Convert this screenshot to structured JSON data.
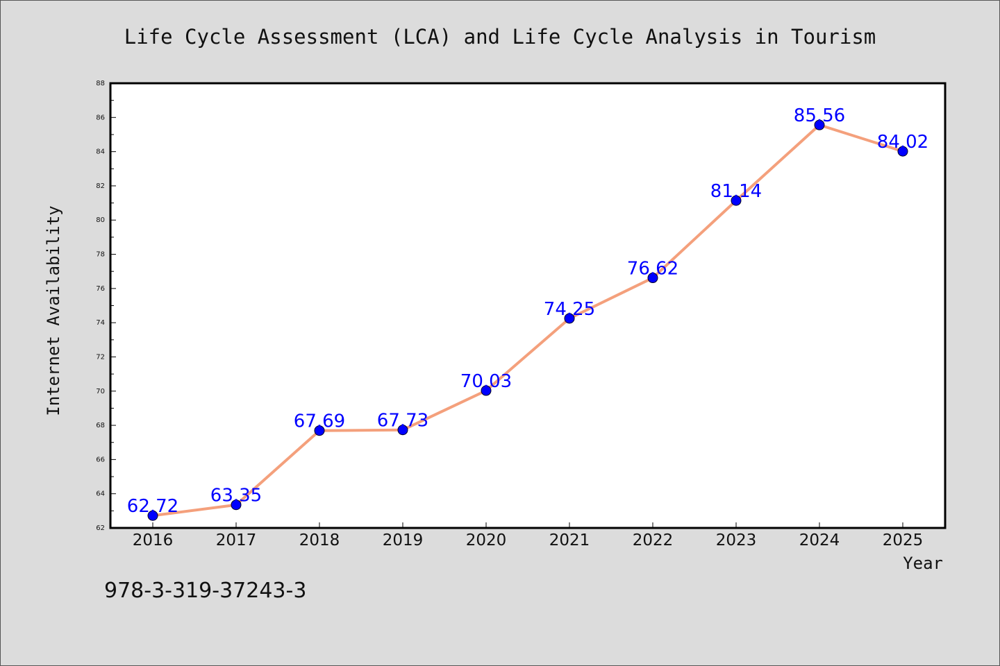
{
  "chart_data": {
    "type": "line",
    "title": "Life Cycle Assessment (LCA) and Life Cycle Analysis in Tourism",
    "xlabel": "Year",
    "ylabel": "Internet Availability",
    "categories": [
      "2016",
      "2017",
      "2018",
      "2019",
      "2020",
      "2021",
      "2022",
      "2023",
      "2024",
      "2025"
    ],
    "series": [
      {
        "values": [
          62.72,
          63.35,
          67.69,
          67.73,
          70.03,
          74.25,
          76.62,
          81.14,
          85.56,
          84.02
        ],
        "labels": [
          "62.72",
          "63.35",
          "67.69",
          "67.73",
          "70.03",
          "74.25",
          "76.62",
          "81.14",
          "85.56",
          "84.02"
        ]
      }
    ],
    "ylim": [
      62,
      88
    ],
    "yticks": [
      "62",
      "64",
      "66",
      "68",
      "70",
      "72",
      "74",
      "76",
      "78",
      "80",
      "82",
      "84",
      "86",
      "88"
    ],
    "grid": false,
    "colors": {
      "line": "#f4a07c",
      "marker": "#0000ff",
      "data_label": "#0000ff",
      "plot_background": "#ffffff",
      "page_background": "#dcdcdc"
    }
  },
  "footer": {
    "isbn": "978-3-319-37243-3"
  }
}
